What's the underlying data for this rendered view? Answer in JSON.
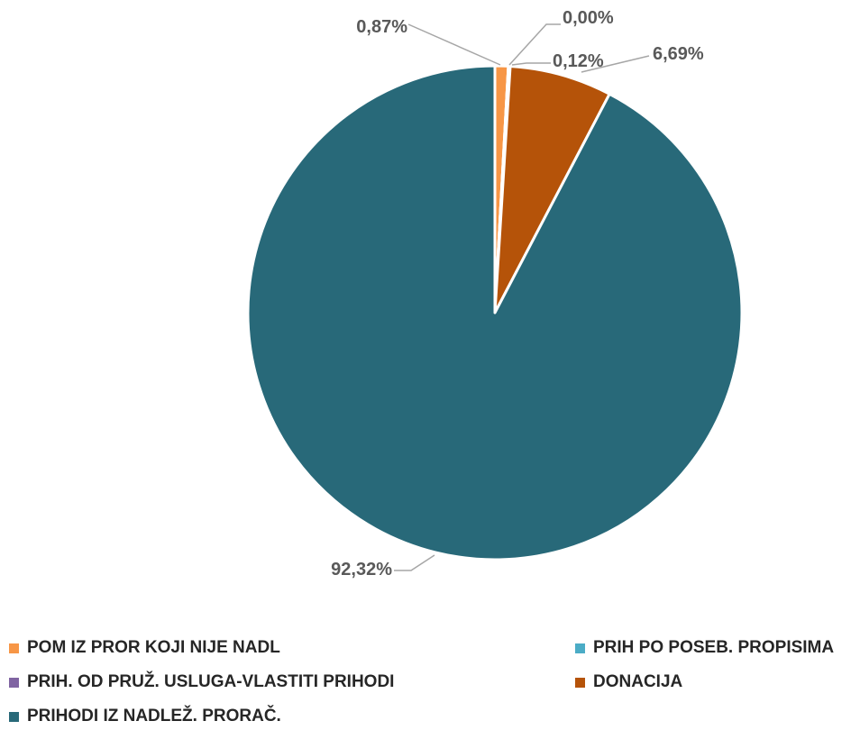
{
  "chart_data": {
    "type": "pie",
    "title": "",
    "slices": [
      {
        "name": "POM IZ PROR KOJI NIJE NADL",
        "value": 0.87,
        "label": "0,87%",
        "color": "#f79646"
      },
      {
        "name": "PRIH PO POSEB. PROPISIMA",
        "value": 0.0,
        "label": "0,00%",
        "color": "#4bacc6"
      },
      {
        "name": "PRIH. OD PRUŽ. USLUGA-VLASTITI PRIHODI",
        "value": 0.12,
        "label": "0,12%",
        "color": "#8064a2"
      },
      {
        "name": "DONACIJA",
        "value": 6.69,
        "label": "6,69%",
        "color": "#b55309"
      },
      {
        "name": "PRIHODI IZ NADLEŽ. PRORAČ.",
        "value": 92.32,
        "label": "92,32%",
        "color": "#286979"
      }
    ],
    "legend_position": "bottom"
  }
}
